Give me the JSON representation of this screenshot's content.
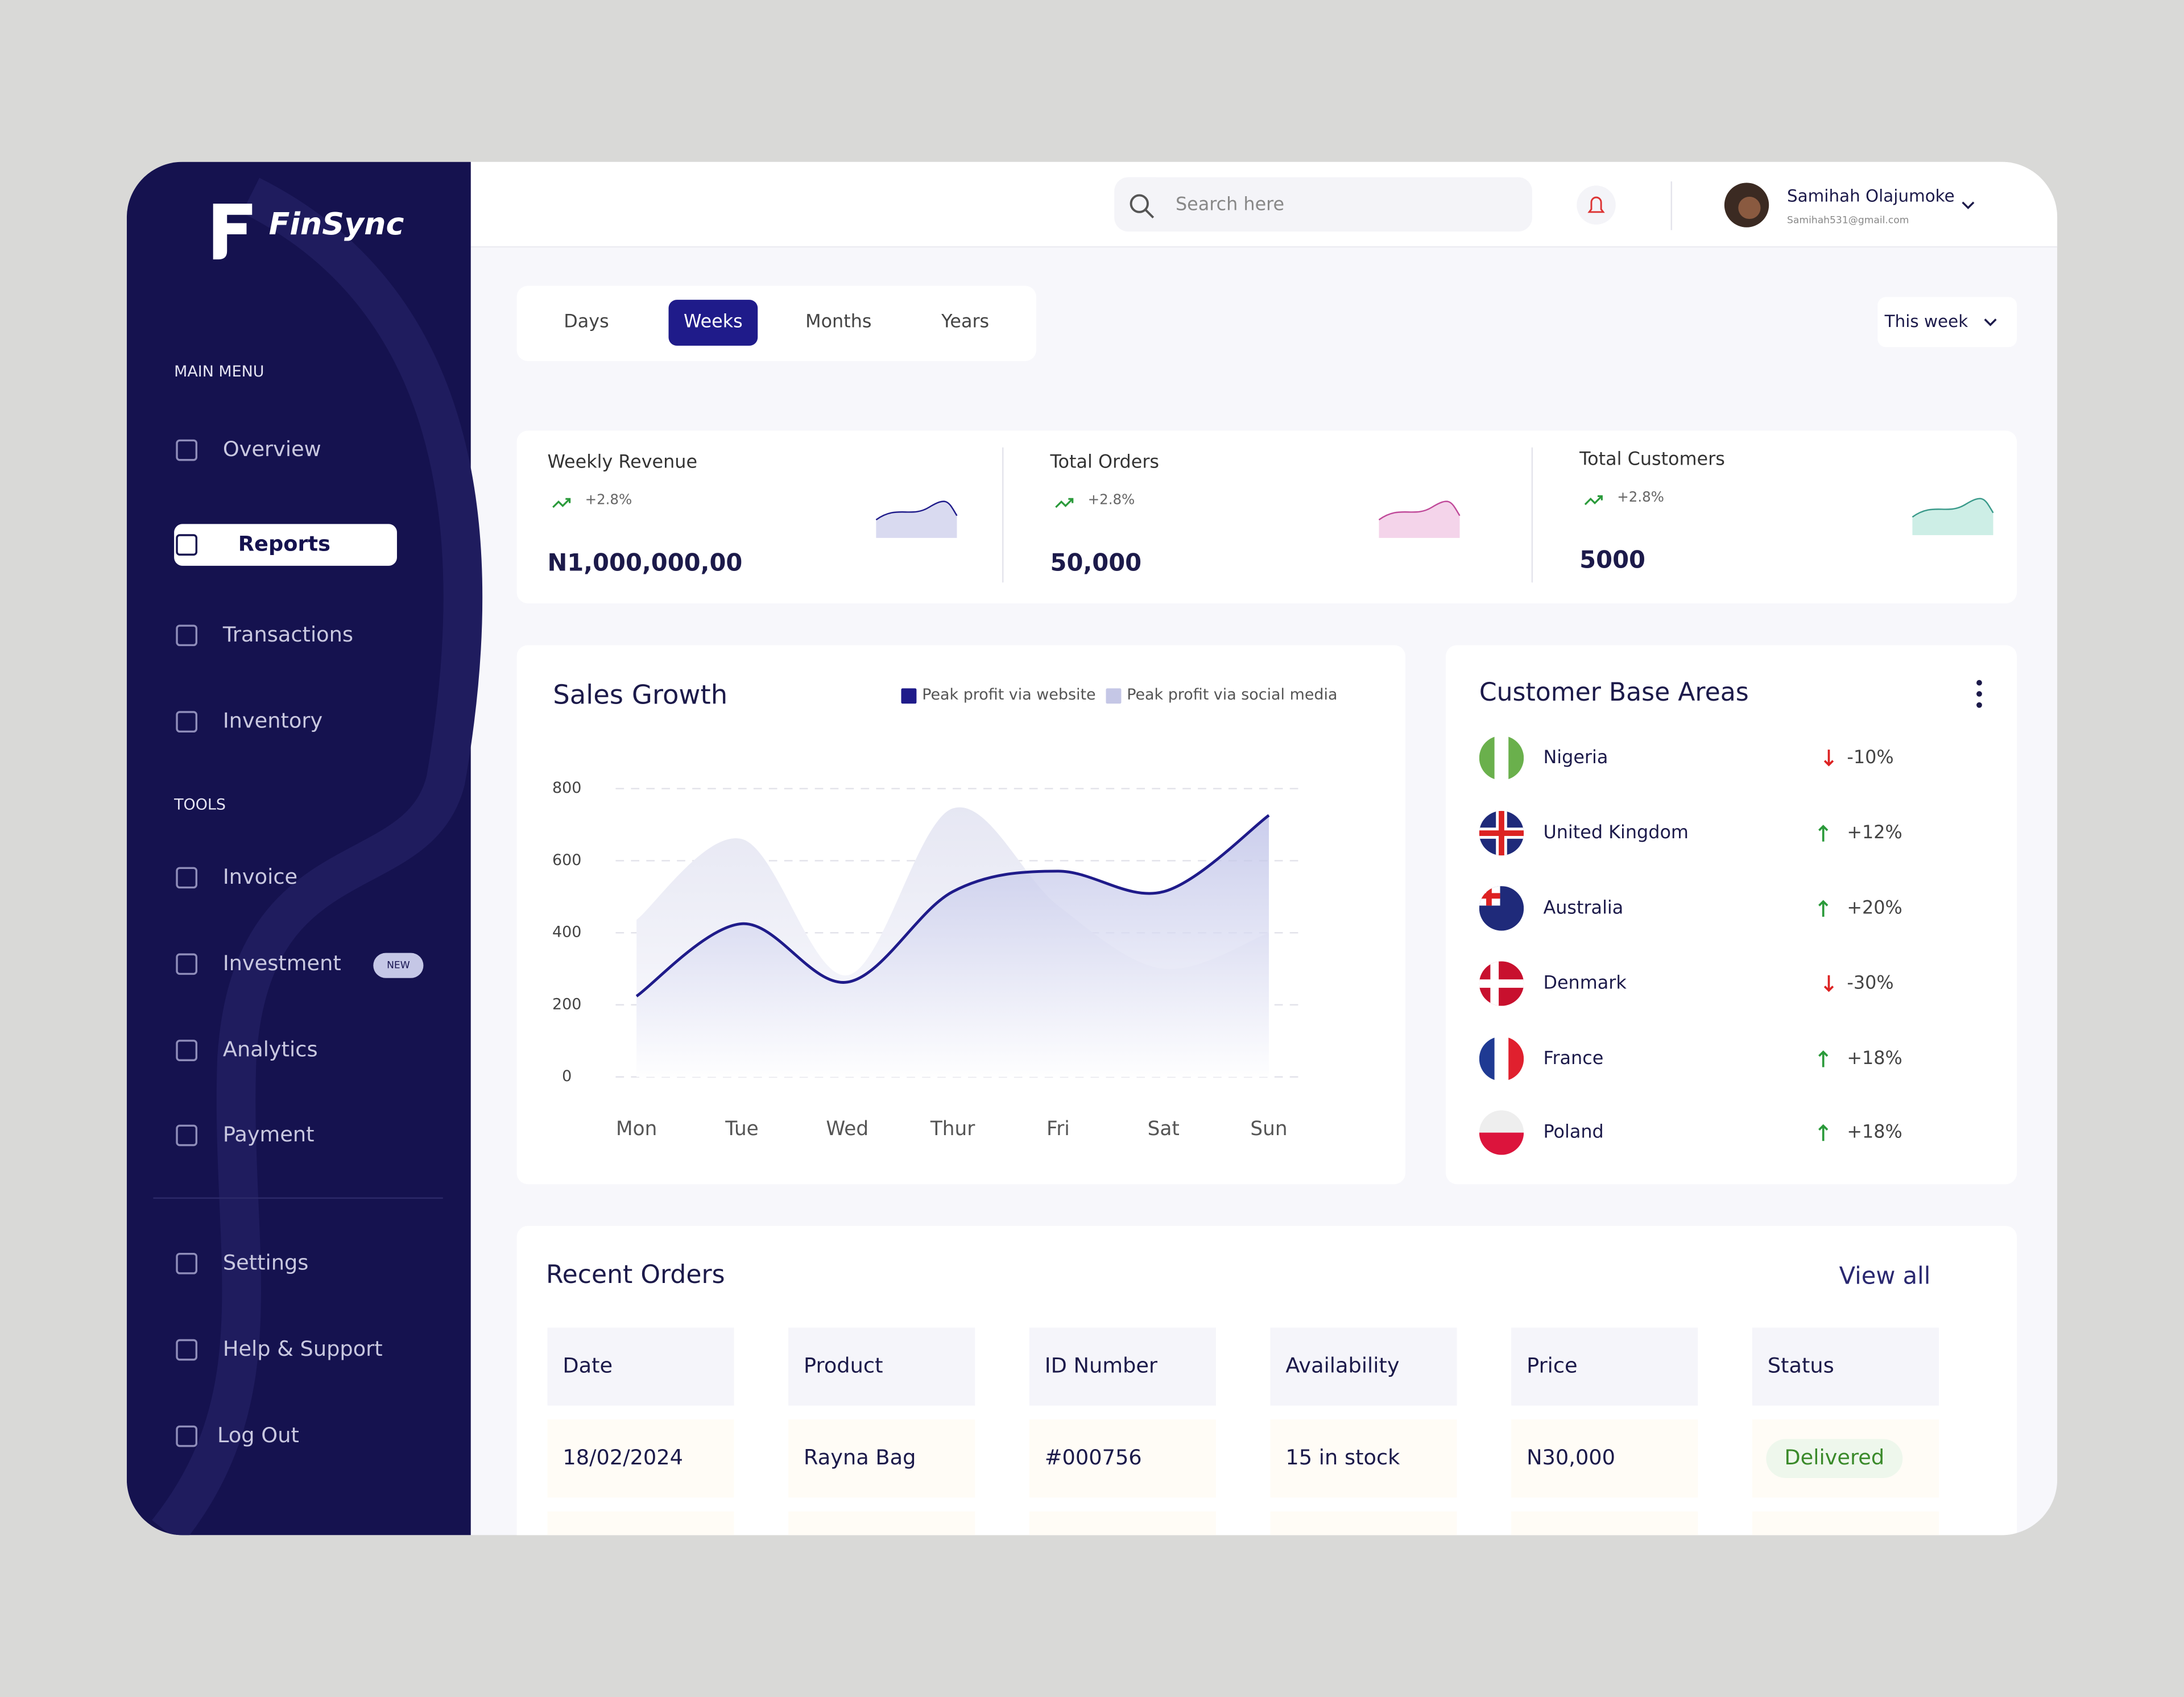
{
  "brand": "FinSync",
  "sidebar": {
    "main_menu_label": "MAIN MENU",
    "main_menu": [
      "Overview",
      "Reports",
      "Transactions",
      "Inventory"
    ],
    "tools_label": "TOOLS",
    "tools": [
      "Invoice",
      "Investment",
      "Analytics",
      "Payment"
    ],
    "new_badge": "NEW",
    "bottom": [
      "Settings",
      "Help & Support",
      "Log Out"
    ]
  },
  "header": {
    "search_placeholder": "Search here",
    "user_name": "Samihah Olajumoke",
    "user_email": "Samihah531@gmail.com"
  },
  "period_tabs": [
    "Days",
    "Weeks",
    "Months",
    "Years"
  ],
  "period_select": "This week",
  "stats": [
    {
      "label": "Weekly Revenue",
      "change": "+2.8%",
      "value": "N1,000,000,00"
    },
    {
      "label": "Total Orders",
      "change": "+2.8%",
      "value": "50,000"
    },
    {
      "label": "Total Customers",
      "change": "+2.8%",
      "value": "5000"
    }
  ],
  "sales_chart": {
    "type": "area",
    "title": "Sales Growth",
    "categories": [
      "Mon",
      "Tue",
      "Wed",
      "Thur",
      "Fri",
      "Sat",
      "Sun"
    ],
    "series": [
      {
        "name": "Peak profit via website",
        "color": "#1f1b8a",
        "values": [
          224,
          425,
          263,
          514,
          571,
          514,
          726
        ]
      },
      {
        "name": "Peak profit via social media",
        "color": "#c5c7e6",
        "values": [
          436,
          660,
          282,
          745,
          475,
          300,
          400
        ]
      }
    ],
    "ylim": [
      0,
      800
    ],
    "yticks": [
      0,
      200,
      400,
      600,
      800
    ],
    "grid": true
  },
  "customer_areas": {
    "title": "Customer Base Areas",
    "rows": [
      {
        "country": "Nigeria",
        "change": "-10%"
      },
      {
        "country": "United Kingdom",
        "change": "+12%"
      },
      {
        "country": "Australia",
        "change": "+20%"
      },
      {
        "country": "Denmark",
        "change": "-30%"
      },
      {
        "country": "France",
        "change": "+18%"
      },
      {
        "country": "Poland",
        "change": "+18%"
      }
    ]
  },
  "recent_orders": {
    "title": "Recent Orders",
    "view_all": "View all",
    "columns": [
      "Date",
      "Product",
      "ID Number",
      "Availability",
      "Price",
      "Status"
    ],
    "rows": [
      [
        "18/02/2024",
        "Rayna Bag",
        "#000756",
        "15 in stock",
        "N30,000",
        "Delivered"
      ]
    ]
  }
}
